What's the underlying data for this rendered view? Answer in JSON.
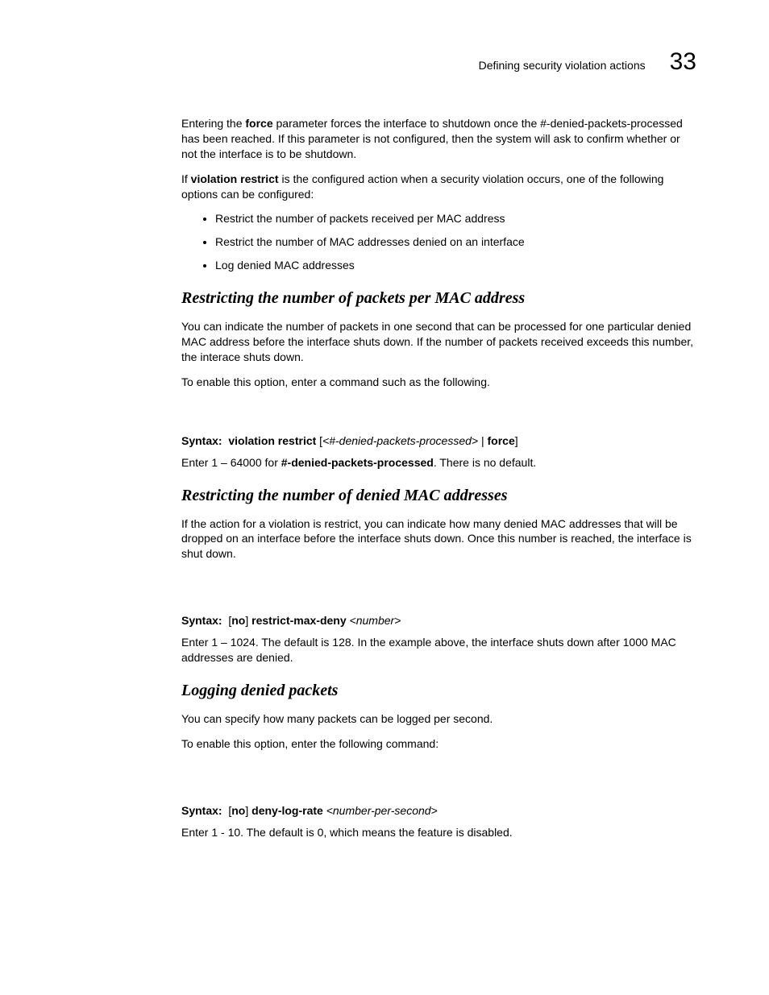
{
  "header": {
    "title": "Defining security violation actions",
    "chapter": "33"
  },
  "intro": {
    "p1_a": "Entering the ",
    "p1_bold": "force",
    "p1_b": " parameter forces the interface to shutdown once the #-denied-packets-processed has been reached. If this parameter is not configured, then the system will ask to confirm whether or not the interface is to be shutdown.",
    "p2_a": "If ",
    "p2_bold": "violation restrict",
    "p2_b": " is the configured action when a security violation occurs, one of the following options can be configured:",
    "bullets": [
      "Restrict the number of packets received per MAC address",
      "Restrict the number of MAC addresses denied on an interface",
      "Log denied MAC addresses"
    ]
  },
  "section1": {
    "heading": "Restricting the number of packets per MAC address",
    "p1": "You can indicate the number of packets in one second that can be processed for one particular denied MAC address before the interface shuts down. If the number of packets received exceeds this number, the interace shuts down.",
    "p2": "To enable this option, enter a command such as the following.",
    "syntax_label": "Syntax:",
    "syntax_bold": "violation restrict",
    "syntax_a": " [",
    "syntax_italic": "<#-denied-packets-processed>",
    "syntax_b": " | ",
    "syntax_bold2": "force",
    "syntax_c": "]",
    "note_a": "Enter 1 – 64000 for ",
    "note_bold": "#-denied-packets-processed",
    "note_b": ". There is no default."
  },
  "section2": {
    "heading": "Restricting the number of denied MAC addresses",
    "p1": "If the action for a violation is restrict, you can indicate how many denied MAC addresses that will be dropped on an interface before the interface shuts down. Once this number is reached, the interface is shut down.",
    "syntax_label": "Syntax:",
    "syntax_a": "[",
    "syntax_bold_no": "no",
    "syntax_b": "] ",
    "syntax_bold": "restrict-max-deny",
    "syntax_c": " ",
    "syntax_italic": "<number>",
    "note": "Enter 1 – 1024. The default is 128. In the example above, the interface shuts down after 1000 MAC addresses are denied."
  },
  "section3": {
    "heading": "Logging denied packets",
    "p1": "You can specify how many packets can be logged per second.",
    "p2": "To enable this option, enter the following command:",
    "syntax_label": "Syntax:",
    "syntax_a": "[",
    "syntax_bold_no": "no",
    "syntax_b": "] ",
    "syntax_bold": "deny-log-rate",
    "syntax_c": " ",
    "syntax_italic": "<number-per-second>",
    "note": "Enter 1 - 10. The default is 0, which means the feature is disabled."
  }
}
